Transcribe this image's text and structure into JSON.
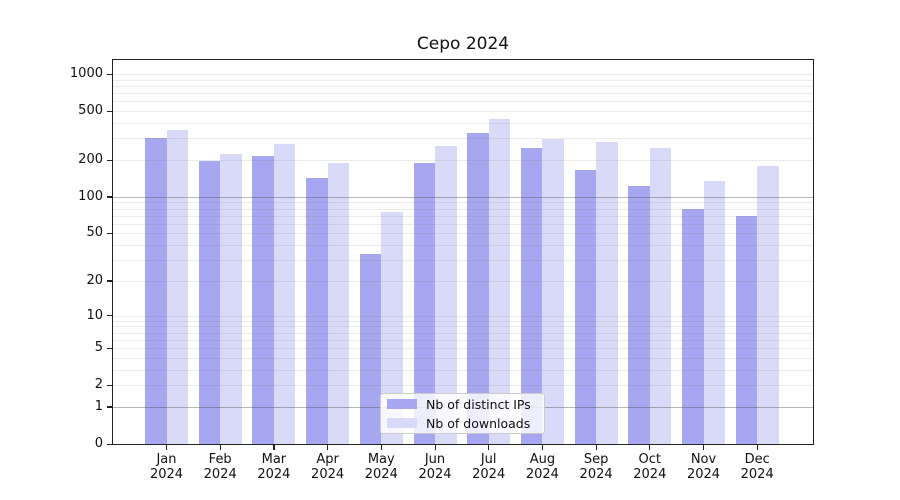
{
  "chart_data": {
    "type": "bar",
    "title": "Cepo 2024",
    "xlabel": "",
    "ylabel": "",
    "y_scale": "log1p",
    "ylim": [
      0,
      1300
    ],
    "grid": true,
    "legend_position": "lower center",
    "background_color": "#ffffff",
    "axis_color": "#222222",
    "major_grid_values": [
      1,
      100
    ],
    "minor_grid_values": [
      2,
      3,
      4,
      5,
      6,
      7,
      8,
      9,
      10,
      20,
      30,
      40,
      50,
      60,
      70,
      80,
      90,
      200,
      300,
      400,
      500,
      600,
      700,
      800,
      900,
      1000
    ],
    "y_ticks": [
      0,
      1,
      2,
      5,
      10,
      20,
      50,
      100,
      200,
      500,
      1000
    ],
    "categories": [
      "Jan",
      "Feb",
      "Mar",
      "Apr",
      "May",
      "Jun",
      "Jul",
      "Aug",
      "Sep",
      "Oct",
      "Nov",
      "Dec"
    ],
    "category_year": "2024",
    "series": [
      {
        "name": "Nb of distinct IPs",
        "color": "#a6a6f1",
        "values": [
          301,
          196,
          217,
          142,
          34,
          188,
          334,
          252,
          165,
          122,
          79,
          70
        ]
      },
      {
        "name": "Nb of downloads",
        "color": "#d9d9f8",
        "values": [
          350,
          222,
          272,
          190,
          75,
          262,
          435,
          294,
          279,
          251,
          135,
          178
        ]
      }
    ]
  }
}
